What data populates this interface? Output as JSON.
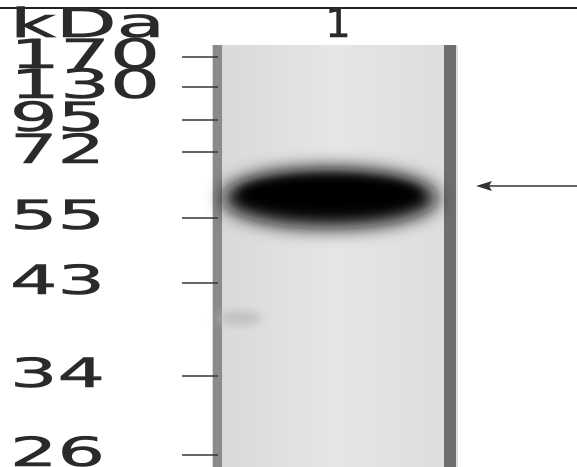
{
  "unit_label": "kDa",
  "lane_label": "1",
  "markers": [
    "170",
    "130",
    "95",
    "72",
    "55",
    "43",
    "34",
    "26"
  ]
}
